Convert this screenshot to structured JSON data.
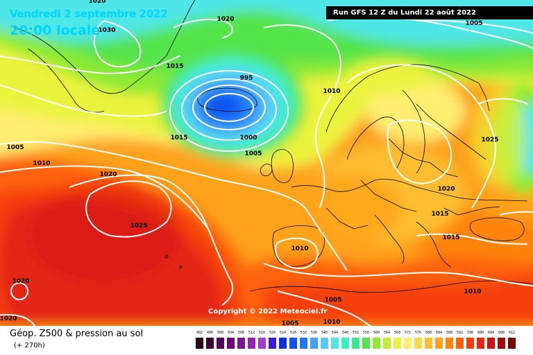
{
  "map": {
    "valid_date": "Vendredi 2 septembre 2022",
    "valid_time": "20:00 locale",
    "run_info": "Run GFS 12 Z du Lundi 22 août 2022",
    "copyright": "Copyright © 2022 Meteociel.fr",
    "variable_title": "Géop. Z500 & pression au sol",
    "lead_time": "(+ 270h)",
    "isobar_labels": [
      {
        "text": "1020"
      },
      {
        "text": "1030"
      },
      {
        "text": "1020"
      },
      {
        "text": "1005"
      },
      {
        "text": "1015"
      },
      {
        "text": "995"
      },
      {
        "text": "1010"
      },
      {
        "text": "1005"
      },
      {
        "text": "1015"
      },
      {
        "text": "1000"
      },
      {
        "text": "1005"
      },
      {
        "text": "1010"
      },
      {
        "text": "1020"
      },
      {
        "text": "1025"
      },
      {
        "text": "1025"
      },
      {
        "text": "1020"
      },
      {
        "text": "1015"
      },
      {
        "text": "1015"
      },
      {
        "text": "1010"
      },
      {
        "text": "1020"
      },
      {
        "text": "1020"
      },
      {
        "text": "1010"
      },
      {
        "text": "1005"
      },
      {
        "text": "1005"
      },
      {
        "text": "1010"
      }
    ],
    "colorbar": [
      {
        "label": "492",
        "color": "#2a0018"
      },
      {
        "label": "496",
        "color": "#3c0034"
      },
      {
        "label": "500",
        "color": "#530059"
      },
      {
        "label": "504",
        "color": "#6a0078"
      },
      {
        "label": "508",
        "color": "#7f1296"
      },
      {
        "label": "512",
        "color": "#9322b2"
      },
      {
        "label": "516",
        "color": "#a538d0"
      },
      {
        "label": "520",
        "color": "#3c18d8"
      },
      {
        "label": "524",
        "color": "#0f2fe6"
      },
      {
        "label": "528",
        "color": "#0c52f0"
      },
      {
        "label": "532",
        "color": "#1f78f6"
      },
      {
        "label": "536",
        "color": "#3fa3fb"
      },
      {
        "label": "540",
        "color": "#5cc8ff"
      },
      {
        "label": "544",
        "color": "#50e6e8"
      },
      {
        "label": "548",
        "color": "#38f0c0"
      },
      {
        "label": "552",
        "color": "#38e88a"
      },
      {
        "label": "556",
        "color": "#56e44c"
      },
      {
        "label": "560",
        "color": "#8cea36"
      },
      {
        "label": "564",
        "color": "#c0ef32"
      },
      {
        "label": "568",
        "color": "#ecf33c"
      },
      {
        "label": "572",
        "color": "#ffee70"
      },
      {
        "label": "576",
        "color": "#ffd84c"
      },
      {
        "label": "580",
        "color": "#ffbe30"
      },
      {
        "label": "584",
        "color": "#ffa21a"
      },
      {
        "label": "588",
        "color": "#ff840c"
      },
      {
        "label": "592",
        "color": "#ff620a"
      },
      {
        "label": "596",
        "color": "#f5400e"
      },
      {
        "label": "600",
        "color": "#e42612"
      },
      {
        "label": "604",
        "color": "#cc1414"
      },
      {
        "label": "608",
        "color": "#a40c0c"
      },
      {
        "label": "612",
        "color": "#780404"
      }
    ]
  }
}
